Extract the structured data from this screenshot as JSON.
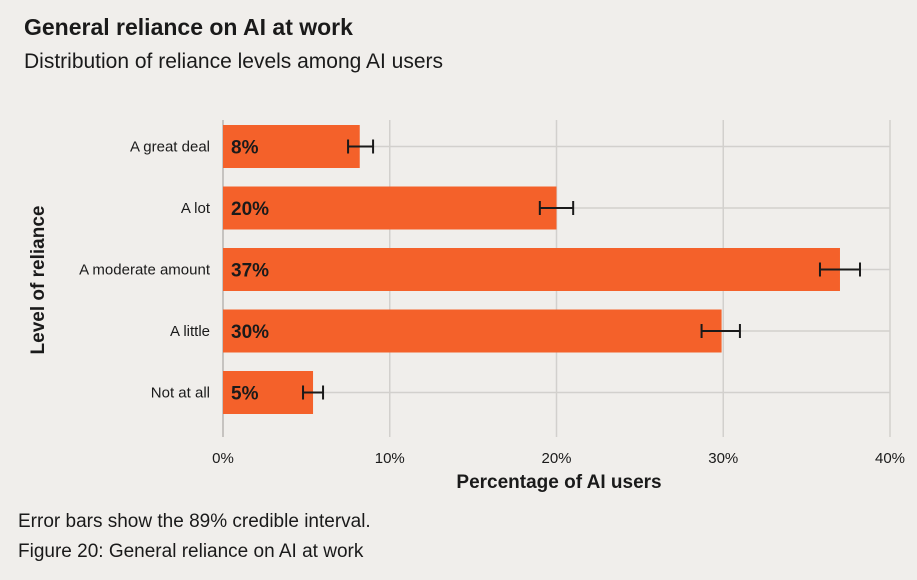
{
  "title": "General reliance on AI at work",
  "subtitle": "Distribution of reliance levels among AI users",
  "footnote": "Error bars show the 89% credible interval.",
  "caption": "Figure 20: General reliance on AI at work",
  "colors": {
    "bar": "#f4612a",
    "grid": "#d2d0cd",
    "text": "#1a1a1a",
    "error": "#1a1a1a",
    "background": "#f0eeeb"
  },
  "chart_data": {
    "type": "bar",
    "orientation": "horizontal",
    "title": "General reliance on AI at work",
    "xlabel": "Percentage of AI users",
    "ylabel": "Level of reliance",
    "xlim": [
      0,
      40
    ],
    "xticks": [
      0,
      10,
      20,
      30,
      40
    ],
    "xtick_labels": [
      "0%",
      "10%",
      "20%",
      "30%",
      "40%"
    ],
    "grid": true,
    "categories": [
      "A great deal",
      "A lot",
      "A moderate amount",
      "A little",
      "Not at all"
    ],
    "values": [
      8.2,
      20,
      37,
      29.9,
      5.4
    ],
    "value_labels": [
      "8%",
      "20%",
      "37%",
      "30%",
      "5%"
    ],
    "error_low": [
      7.5,
      19,
      35.8,
      28.7,
      4.8
    ],
    "error_high": [
      9,
      21,
      38.2,
      31,
      6
    ]
  }
}
